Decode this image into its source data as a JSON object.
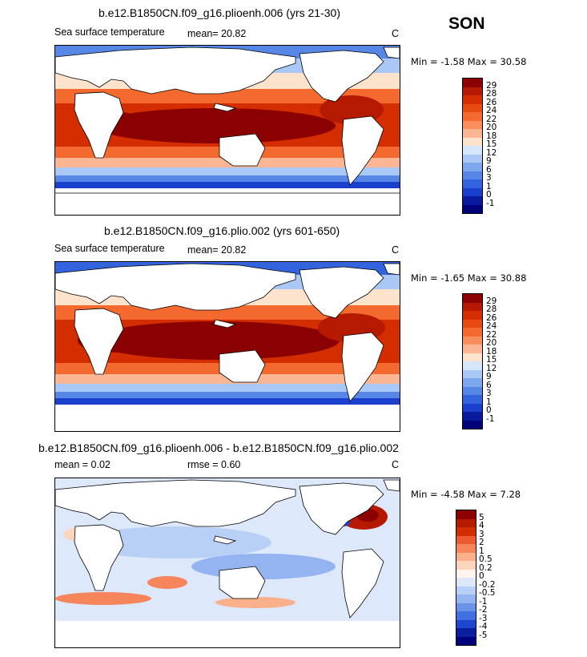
{
  "season": "SON",
  "panels": [
    {
      "title": "b.e12.B1850CN.f09_g16.plioenh.006 (yrs 21-30)",
      "field": "Sea surface temperature",
      "stat": "mean=   20.82",
      "units": "C",
      "minmax": "Min =    -1.58  Max =    30.58",
      "levels": [
        "29",
        "28",
        "26",
        "24",
        "22",
        "20",
        "18",
        "15",
        "12",
        "9",
        "6",
        "3",
        "1",
        "0",
        "-1"
      ],
      "colors": [
        "#8b0000",
        "#b51a00",
        "#d42d00",
        "#e84a10",
        "#f4692e",
        "#f98d5c",
        "#fcb693",
        "#fde2cc",
        "#d6e6fb",
        "#a9c8f5",
        "#7ea8ee",
        "#5687e6",
        "#3464dd",
        "#1a3fcc",
        "#0a1a9c",
        "#00007a"
      ]
    },
    {
      "title": "b.e12.B1850CN.f09_g16.plio.002 (yrs 601-650)",
      "field": "Sea surface temperature",
      "stat": "mean=   20.82",
      "units": "C",
      "minmax": "Min =    -1.65  Max =    30.88",
      "levels": [
        "29",
        "28",
        "26",
        "24",
        "22",
        "20",
        "18",
        "15",
        "12",
        "9",
        "6",
        "3",
        "1",
        "0",
        "-1"
      ],
      "colors": [
        "#8b0000",
        "#b51a00",
        "#d42d00",
        "#e84a10",
        "#f4692e",
        "#f98d5c",
        "#fcb693",
        "#fde2cc",
        "#d6e6fb",
        "#a9c8f5",
        "#7ea8ee",
        "#5687e6",
        "#3464dd",
        "#1a3fcc",
        "#0a1a9c",
        "#00007a"
      ]
    },
    {
      "title": "b.e12.B1850CN.f09_g16.plioenh.006 - b.e12.B1850CN.f09_g16.plio.002",
      "stat_mean": "mean =     0.02",
      "stat_rmse": "rmse =    0.60",
      "units": "C",
      "minmax": "Min =    -4.58  Max =     7.28",
      "levels": [
        "5",
        "4",
        "3",
        "2",
        "1",
        "0.5",
        "0.2",
        "0",
        "-0.2",
        "-0.5",
        "-1",
        "-2",
        "-3",
        "-4",
        "-5"
      ],
      "colors": [
        "#8b0000",
        "#b51a00",
        "#d42d00",
        "#ec5a30",
        "#f7855c",
        "#fbb08c",
        "#fdd4bc",
        "#fff5ee",
        "#dde8fb",
        "#b8cff6",
        "#93b4f0",
        "#6a93e8",
        "#4170e0",
        "#1f46cf",
        "#0b1e9e",
        "#00007a"
      ]
    }
  ]
}
